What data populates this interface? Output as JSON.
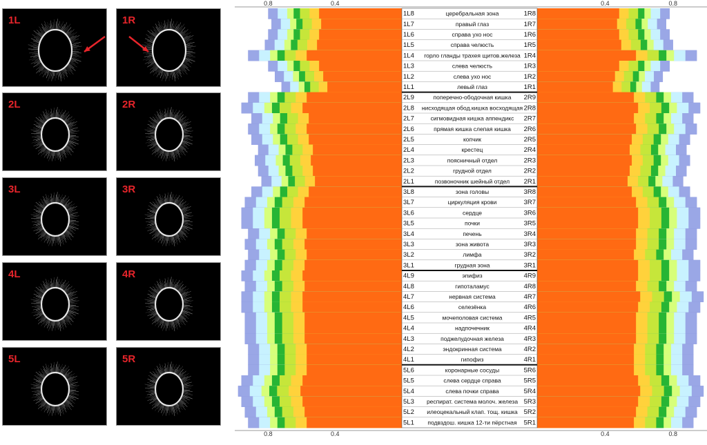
{
  "images": {
    "cells": [
      {
        "label": "1L",
        "arrow": "left"
      },
      {
        "label": "1R",
        "arrow": "right"
      },
      {
        "label": "2L"
      },
      {
        "label": "2R"
      },
      {
        "label": "3L"
      },
      {
        "label": "3R"
      },
      {
        "label": "4L"
      },
      {
        "label": "4R"
      },
      {
        "label": "5L"
      },
      {
        "label": "5R"
      }
    ]
  },
  "chart_data": {
    "type": "bar",
    "description_axis": {
      "top_left_ticks": [
        "0.8",
        "0.4"
      ],
      "top_right_ticks": [
        "0.4",
        "0.8"
      ],
      "bottom_left_ticks": [
        "0.8",
        "0.4"
      ],
      "bottom_right_ticks": [
        "0.4",
        "0.8"
      ]
    },
    "tick_values": [
      0.8,
      0.4
    ],
    "xlim": [
      0,
      1.0
    ],
    "band_colors": [
      "#ff6a13",
      "#ffd23b",
      "#c6e63a",
      "#27b534",
      "#d7ff7a",
      "#c8f2ff",
      "#9aa7e6",
      "#7a7fcf"
    ],
    "band_offsets": [
      0.4,
      0.52,
      0.58,
      0.64,
      0.68,
      0.72,
      0.78,
      0.84
    ],
    "groups": [
      {
        "rows": [
          {
            "left": "1L8",
            "name": "церебральная зона",
            "right": "1R8",
            "vL": 0.8,
            "vR": 0.78
          },
          {
            "left": "1L7",
            "name": "правый глаз",
            "right": "1R7",
            "vL": 0.78,
            "vR": 0.76
          },
          {
            "left": "1L6",
            "name": "справа ухо  нос",
            "right": "1R6",
            "vL": 0.8,
            "vR": 0.78
          },
          {
            "left": "1L5",
            "name": "справа челюсть",
            "right": "1R5",
            "vL": 0.82,
            "vR": 0.8
          },
          {
            "left": "1L4",
            "name": "горло гланды трахея щитов.железа",
            "right": "1R4",
            "vL": 0.92,
            "vR": 0.94
          },
          {
            "left": "1L3",
            "name": "слева челюсть",
            "right": "1R3",
            "vL": 0.8,
            "vR": 0.78
          },
          {
            "left": "1L2",
            "name": "слева ухо  нос",
            "right": "1R2",
            "vL": 0.76,
            "vR": 0.74
          },
          {
            "left": "1L1",
            "name": "левый глаз",
            "right": "1R1",
            "vL": 0.72,
            "vR": 0.72
          }
        ]
      },
      {
        "rows": [
          {
            "left": "2L9",
            "name": "поперечно-ободочная кишка",
            "right": "2R9",
            "vL": 0.92,
            "vR": 0.92
          },
          {
            "left": "2L8",
            "name": "нисходящая обод.кишка восходящая",
            "right": "2R8",
            "vL": 0.96,
            "vR": 0.96
          },
          {
            "left": "2L7",
            "name": "сигмовидная кишка   аппендикс",
            "right": "2R7",
            "vL": 0.9,
            "vR": 0.92
          },
          {
            "left": "2L6",
            "name": "прямая кишка    слепая кишка",
            "right": "2R6",
            "vL": 0.92,
            "vR": 0.94
          },
          {
            "left": "2L5",
            "name": "копчик",
            "right": "2R5",
            "vL": 0.9,
            "vR": 0.9
          },
          {
            "left": "2L4",
            "name": "крестец",
            "right": "2R4",
            "vL": 0.86,
            "vR": 0.88
          },
          {
            "left": "2L3",
            "name": "поясничный отдел",
            "right": "2R3",
            "vL": 0.88,
            "vR": 0.9
          },
          {
            "left": "2L2",
            "name": "грудной отдел",
            "right": "2R2",
            "vL": 0.86,
            "vR": 0.88
          },
          {
            "left": "2L1",
            "name": "позвоночник шейный отдел",
            "right": "2R1",
            "vL": 0.84,
            "vR": 0.86
          }
        ]
      },
      {
        "rows": [
          {
            "left": "3L8",
            "name": "зона головы",
            "right": "3R8",
            "vL": 0.9,
            "vR": 0.9
          },
          {
            "left": "3L7",
            "name": "циркуляция крови",
            "right": "3R7",
            "vL": 0.94,
            "vR": 0.94
          },
          {
            "left": "3L6",
            "name": "сердце",
            "right": "3R6",
            "vL": 0.96,
            "vR": 0.96
          },
          {
            "left": "3L5",
            "name": "почки",
            "right": "3R5",
            "vL": 0.96,
            "vR": 0.96
          },
          {
            "left": "3L4",
            "name": "печень",
            "right": "3R4",
            "vL": 0.92,
            "vR": 0.94
          },
          {
            "left": "3L3",
            "name": "зона живота",
            "right": "3R3",
            "vL": 0.94,
            "vR": 0.94
          },
          {
            "left": "3L2",
            "name": "лимфа",
            "right": "3R2",
            "vL": 0.92,
            "vR": 0.92
          },
          {
            "left": "3L1",
            "name": "грудная зона",
            "right": "3R1",
            "vL": 0.94,
            "vR": 0.96
          }
        ]
      },
      {
        "rows": [
          {
            "left": "4L9",
            "name": "эпифиз",
            "right": "4R9",
            "vL": 0.96,
            "vR": 0.96
          },
          {
            "left": "4L8",
            "name": "гипоталамус",
            "right": "4R8",
            "vL": 0.94,
            "vR": 0.94
          },
          {
            "left": "4L7",
            "name": "нервная система",
            "right": "4R7",
            "vL": 0.96,
            "vR": 0.98
          },
          {
            "left": "4L6",
            "name": "селезёнка",
            "right": "4R6",
            "vL": 0.96,
            "vR": 0.96
          },
          {
            "left": "4L5",
            "name": "мочеполовая система",
            "right": "4R5",
            "vL": 0.94,
            "vR": 0.94
          },
          {
            "left": "4L4",
            "name": "надпочечник",
            "right": "4R4",
            "vL": 0.94,
            "vR": 0.94
          },
          {
            "left": "4L3",
            "name": "поджелудочная железа",
            "right": "4R3",
            "vL": 0.94,
            "vR": 0.94
          },
          {
            "left": "4L2",
            "name": "эндокринная система",
            "right": "4R2",
            "vL": 0.92,
            "vR": 0.92
          },
          {
            "left": "4L1",
            "name": "гипофиз",
            "right": "4R1",
            "vL": 0.92,
            "vR": 0.92
          }
        ]
      },
      {
        "rows": [
          {
            "left": "5L6",
            "name": "коронарные сосуды",
            "right": "5R6",
            "vL": 0.92,
            "vR": 0.92
          },
          {
            "left": "5L5",
            "name": "слева      сердце      справа",
            "right": "5R5",
            "vL": 0.96,
            "vR": 0.96
          },
          {
            "left": "5L4",
            "name": "слева        почки        справа",
            "right": "5R4",
            "vL": 0.98,
            "vR": 0.98
          },
          {
            "left": "5L3",
            "name": "респират. система молоч. железа",
            "right": "5R3",
            "vL": 0.96,
            "vR": 0.96
          },
          {
            "left": "5L2",
            "name": "илеоцекальный клап.  тощ. кишка",
            "right": "5R2",
            "vL": 0.94,
            "vR": 0.94
          },
          {
            "left": "5L1",
            "name": "подвздош. кишка 12-ти пёрстная",
            "right": "5R1",
            "vL": 0.92,
            "vR": 0.92
          }
        ]
      }
    ]
  }
}
